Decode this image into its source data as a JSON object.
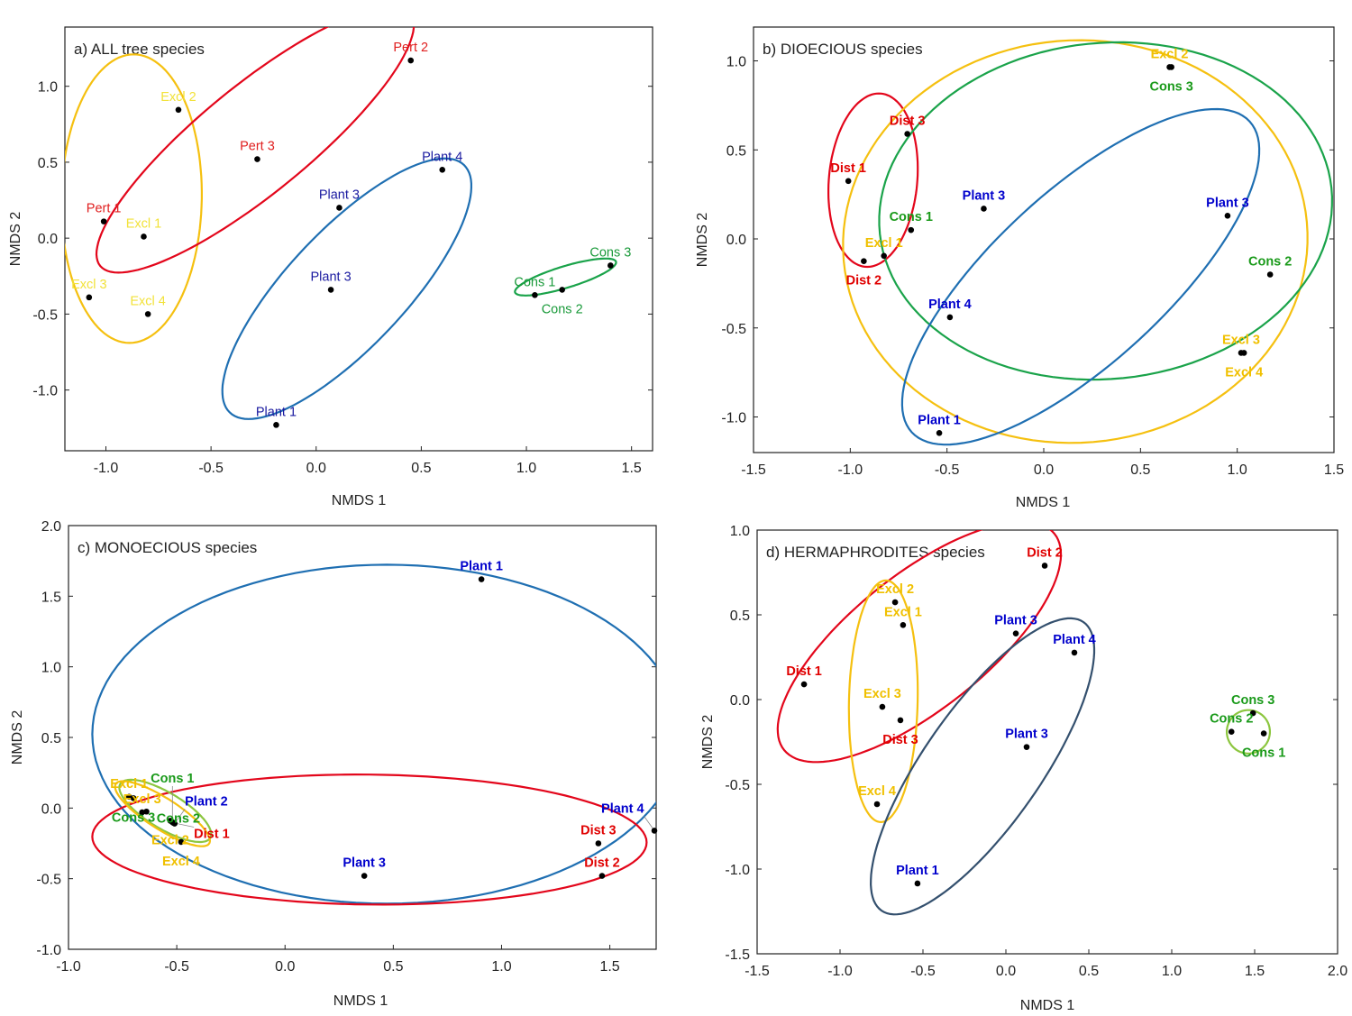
{
  "chart_data": [
    {
      "type": "scatter",
      "title": "a) ALL tree species",
      "xlabel": "NMDS 1",
      "ylabel": "NMDS 2",
      "xlim": [
        -1.195,
        1.6
      ],
      "ylim": [
        -1.4,
        1.39
      ],
      "xticks": [
        -1.0,
        -0.5,
        0.0,
        0.5,
        1.0,
        1.5
      ],
      "yticks": [
        -1.0,
        -0.5,
        0.0,
        0.5,
        1.0
      ],
      "bold_labels": false,
      "points": [
        {
          "label": "Pert 2",
          "group": "Pert",
          "x": 0.45,
          "y": 1.17
        },
        {
          "label": "Excl 2",
          "group": "Excl",
          "x": -0.655,
          "y": 0.845
        },
        {
          "label": "Pert 3",
          "group": "Pert",
          "x": -0.28,
          "y": 0.52
        },
        {
          "label": "Plant 4",
          "group": "Plant",
          "x": 0.6,
          "y": 0.45
        },
        {
          "label": "Plant 3",
          "group": "Plant",
          "x": 0.11,
          "y": 0.2
        },
        {
          "label": "Pert 1",
          "group": "Pert",
          "x": -1.01,
          "y": 0.11
        },
        {
          "label": "Excl 1",
          "group": "Excl",
          "x": -0.82,
          "y": 0.01
        },
        {
          "label": "Cons 3",
          "group": "Cons",
          "x": 1.4,
          "y": -0.18
        },
        {
          "label": "Excl 3",
          "group": "Excl",
          "x": -1.08,
          "y": -0.39
        },
        {
          "label": "Plant 3",
          "group": "Plant",
          "x": 0.07,
          "y": -0.34
        },
        {
          "label": "Cons 1",
          "group": "Cons",
          "x": 1.04,
          "y": -0.375
        },
        {
          "label": "Cons 2",
          "group": "Cons",
          "x": 1.17,
          "y": -0.34
        },
        {
          "label": "Excl 4",
          "group": "Excl",
          "x": -0.8,
          "y": -0.5
        },
        {
          "label": "Plant 1",
          "group": "Plant",
          "x": -0.19,
          "y": -1.23
        }
      ],
      "ellipses": [
        {
          "group": "Excl",
          "center": [
            -0.878,
            0.26
          ],
          "axis1": [
            0.01,
            0.95
          ],
          "axis2": [
            0.334,
            0
          ]
        },
        {
          "group": "Pert",
          "center": [
            -0.29,
            0.65
          ],
          "axis1": [
            0.737,
            0.833
          ],
          "axis2": [
            0.163,
            -0.274
          ]
        },
        {
          "group": "Plant",
          "center": [
            0.146,
            -0.333
          ],
          "axis1": [
            0.557,
            0.815
          ],
          "axis2": [
            0.201,
            -0.268
          ]
        },
        {
          "group": "Cons",
          "center": [
            1.186,
            -0.256
          ],
          "axis1": [
            0.24,
            0.101
          ],
          "axis2": [
            0.015,
            -0.068
          ]
        }
      ]
    },
    {
      "type": "scatter",
      "title": "b) DIOECIOUS species",
      "xlabel": "NMDS 1",
      "ylabel": "NMDS 2",
      "xlim": [
        -1.5,
        1.5
      ],
      "ylim": [
        -1.2,
        1.19
      ],
      "xticks": [
        -1.5,
        -1.0,
        -0.5,
        0.0,
        0.5,
        1.0,
        1.5
      ],
      "yticks": [
        -1.0,
        -0.5,
        0.0,
        0.5,
        1.0
      ],
      "bold_labels": true,
      "points": [
        {
          "label": "Excl 2",
          "group": "Excl",
          "x": 0.65,
          "y": 0.965
        },
        {
          "label": "Cons 3",
          "group": "Cons",
          "x": 0.66,
          "y": 0.965
        },
        {
          "label": "Dist 3",
          "group": "Dist",
          "x": -0.705,
          "y": 0.59
        },
        {
          "label": "Dist 1",
          "group": "Dist",
          "x": -1.01,
          "y": 0.325
        },
        {
          "label": "Plant 3",
          "group": "Plant",
          "x": -0.31,
          "y": 0.17
        },
        {
          "label": "Plant 3",
          "group": "Plant",
          "x": 0.95,
          "y": 0.13
        },
        {
          "label": "Cons 1",
          "group": "Cons",
          "x": -0.686,
          "y": 0.05
        },
        {
          "label": "Excl 1",
          "group": "Excl",
          "x": -0.826,
          "y": -0.095
        },
        {
          "label": "Dist 2",
          "group": "Dist",
          "x": -0.93,
          "y": -0.125
        },
        {
          "label": "Cons 2",
          "group": "Cons",
          "x": 1.17,
          "y": -0.2
        },
        {
          "label": "Plant 4",
          "group": "Plant",
          "x": -0.485,
          "y": -0.44
        },
        {
          "label": "Excl 3",
          "group": "Excl",
          "x": 1.02,
          "y": -0.64
        },
        {
          "label": "Excl 4",
          "group": "Excl",
          "x": 1.035,
          "y": -0.64
        },
        {
          "label": "Plant 1",
          "group": "Plant",
          "x": -0.54,
          "y": -1.09
        }
      ],
      "ellipses": [
        {
          "group": "Dist",
          "center": [
            -0.882,
            0.33
          ],
          "axis1": [
            0.03,
            0.487
          ],
          "axis2": [
            0.229,
            0
          ]
        },
        {
          "group": "Excl",
          "center": [
            0.163,
            -0.015
          ],
          "axis1": [
            1.2,
            0.05
          ],
          "axis2": [
            -0.03,
            1.13
          ]
        },
        {
          "group": "Cons",
          "center": [
            0.32,
            0.157
          ],
          "axis1": [
            1.17,
            0.08
          ],
          "axis2": [
            -0.03,
            0.944
          ]
        },
        {
          "group": "Plant",
          "center": [
            0.191,
            -0.213
          ],
          "axis1": [
            0.873,
            0.873
          ],
          "axis2": [
            0.3,
            -0.355
          ]
        }
      ]
    },
    {
      "type": "scatter",
      "title": "c) MONOECIOUS species",
      "xlabel": "NMDS 1",
      "ylabel": "NMDS 2",
      "xlim": [
        -1.0,
        1.714
      ],
      "ylim": [
        -1.0,
        2.0
      ],
      "xticks": [
        -1.0,
        -0.5,
        0.0,
        0.5,
        1.0,
        1.5
      ],
      "yticks": [
        -1.0,
        -0.5,
        0.0,
        0.5,
        1.0,
        1.5,
        2.0
      ],
      "bold_labels": true,
      "points": [
        {
          "label": "Plant 1",
          "group": "Plant",
          "x": 0.907,
          "y": 1.62
        },
        {
          "label": "Excl 1",
          "group": "Excl",
          "x": -0.72,
          "y": 0.08
        },
        {
          "label": "Cons 3",
          "group": "Cons",
          "x": -0.7,
          "y": 0.07
        },
        {
          "label": "Excl 3",
          "group": "Excl",
          "x": -0.66,
          "y": -0.03
        },
        {
          "label": "Cons 2",
          "group": "Cons",
          "x": -0.64,
          "y": -0.025
        },
        {
          "label": "Excl 2",
          "group": "Excl",
          "x": -0.53,
          "y": -0.09
        },
        {
          "label": "Plant 2",
          "group": "Plant",
          "x": -0.51,
          "y": -0.11
        },
        {
          "label": "Cons 1",
          "group": "Cons",
          "x": -0.52,
          "y": -0.1
        },
        {
          "label": "Dist 1",
          "group": "Dist",
          "x": -0.515,
          "y": -0.105
        },
        {
          "label": "Excl 4",
          "group": "Excl",
          "x": -0.48,
          "y": -0.24
        },
        {
          "label": "Plant 3",
          "group": "Plant",
          "x": 0.366,
          "y": -0.48
        },
        {
          "label": "Dist 3",
          "group": "Dist",
          "x": 1.447,
          "y": -0.25
        },
        {
          "label": "Plant 4",
          "group": "Plant",
          "x": 1.72,
          "y": -0.16
        },
        {
          "label": "Dist 2",
          "group": "Dist",
          "x": 1.464,
          "y": -0.48
        }
      ],
      "ellipses": [
        {
          "group": "Plant",
          "center": [
            0.47,
            0.523
          ],
          "axis1": [
            1.36,
            0
          ],
          "axis2": [
            0,
            1.2
          ]
        },
        {
          "group": "Dist",
          "center": [
            0.39,
            -0.223
          ],
          "axis1": [
            1.28,
            -0.02
          ],
          "axis2": [
            0,
            0.46
          ]
        },
        {
          "group": "Cons",
          "center": [
            -0.553,
            -0.02
          ],
          "axis1": [
            0.208,
            -0.191
          ],
          "axis2": [
            -0.042,
            -0.11
          ]
        },
        {
          "group": "Excl",
          "center": [
            -0.566,
            -0.04
          ],
          "axis1": [
            0.216,
            -0.21
          ],
          "axis2": [
            -0.036,
            -0.095
          ]
        }
      ]
    },
    {
      "type": "scatter",
      "title": "d) HERMAPHRODITES species",
      "xlabel": "NMDS 1",
      "ylabel": "NMDS 2",
      "xlim": [
        -1.5,
        2.0
      ],
      "ylim": [
        -1.5,
        1.0
      ],
      "xticks": [
        -1.5,
        -1.0,
        -0.5,
        0.0,
        0.5,
        1.0,
        1.5,
        2.0
      ],
      "yticks": [
        -1.5,
        -1.0,
        -0.5,
        0.0,
        0.5,
        1.0
      ],
      "bold_labels": true,
      "points": [
        {
          "label": "Dist 2",
          "group": "Dist",
          "x": 0.234,
          "y": 0.79
        },
        {
          "label": "Excl 2",
          "group": "Excl",
          "x": -0.668,
          "y": 0.574
        },
        {
          "label": "Excl 1",
          "group": "Excl",
          "x": -0.62,
          "y": 0.44
        },
        {
          "label": "Plant 3",
          "group": "Plant",
          "x": 0.06,
          "y": 0.39
        },
        {
          "label": "Plant 4",
          "group": "Plant",
          "x": 0.413,
          "y": 0.277
        },
        {
          "label": "Dist 1",
          "group": "Dist",
          "x": -1.217,
          "y": 0.09
        },
        {
          "label": "Excl 3",
          "group": "Excl",
          "x": -0.745,
          "y": -0.043
        },
        {
          "label": "Dist 3",
          "group": "Dist",
          "x": -0.636,
          "y": -0.122
        },
        {
          "label": "Cons 3",
          "group": "Cons",
          "x": 1.49,
          "y": -0.08
        },
        {
          "label": "Cons 2",
          "group": "Cons",
          "x": 1.36,
          "y": -0.19
        },
        {
          "label": "Cons 1",
          "group": "Cons",
          "x": 1.555,
          "y": -0.2
        },
        {
          "label": "Plant 3",
          "group": "Plant",
          "x": 0.125,
          "y": -0.28
        },
        {
          "label": "Excl 4",
          "group": "Excl",
          "x": -0.777,
          "y": -0.617
        },
        {
          "label": "Plant 1",
          "group": "Plant",
          "x": -0.533,
          "y": -1.085
        }
      ],
      "ellipses": [
        {
          "group": "Dist",
          "center": [
            -0.522,
            0.34
          ],
          "axis1": [
            0.815,
            0.638
          ],
          "axis2": [
            0.255,
            -0.309
          ]
        },
        {
          "group": "Excl",
          "center": [
            -0.739,
            -0.01
          ],
          "axis1": [
            0.015,
            0.713
          ],
          "axis2": [
            0.207,
            0
          ]
        },
        {
          "group": "Plant",
          "center": [
            -0.141,
            -0.394
          ],
          "axis1": [
            0.609,
            0.851
          ],
          "axis2": [
            0.288,
            -0.197
          ]
        },
        {
          "group": "Cons",
          "center": [
            1.462,
            -0.19
          ],
          "axis1": [
            0.13,
            0
          ],
          "axis2": [
            0,
            0.128
          ]
        }
      ]
    }
  ],
  "colors": {
    "ellipse": {
      "Pert": "#e3061b",
      "Dist": "#e3061b",
      "Excl": "#f5c010",
      "Plant": "#1f6fb2",
      "Cons": "#1aa34a"
    },
    "ellipse_overrides": {
      "2": {
        "Cons": "#8cc63f"
      },
      "3": {
        "Cons": "#8cc63f",
        "Plant": "#34506e"
      }
    },
    "label_plain": {
      "Pert": "#e02020",
      "Excl": "#f2e23a",
      "Plant": "#1a1aa0",
      "Cons": "#1a9a3a"
    },
    "label_bold": {
      "Dist": "#e00000",
      "Excl": "#f0c000",
      "Plant": "#0000cc",
      "Cons": "#1a9a1a"
    }
  }
}
